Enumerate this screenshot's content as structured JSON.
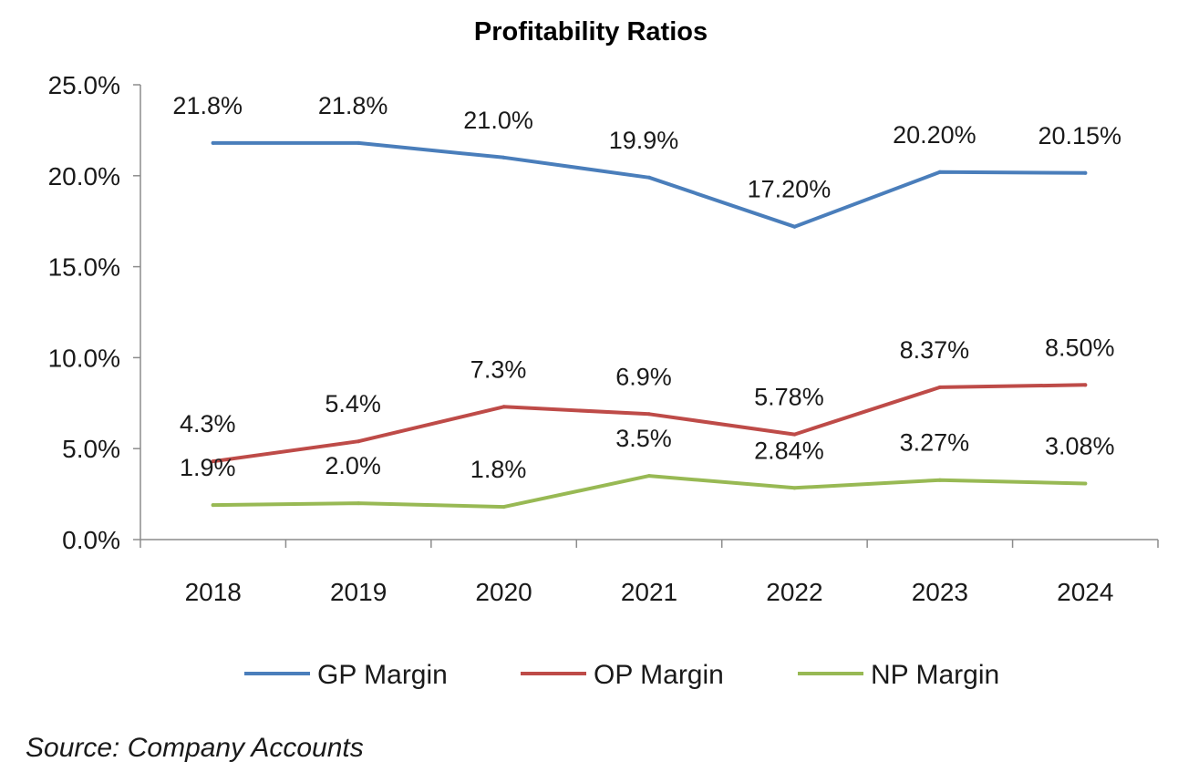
{
  "chart_data": {
    "type": "line",
    "title": "Profitability Ratios",
    "xlabel": "",
    "ylabel": "",
    "categories": [
      "2018",
      "2019",
      "2020",
      "2021",
      "2022",
      "2023",
      "2024"
    ],
    "ylim": [
      0,
      25
    ],
    "yticks": [
      0,
      5,
      10,
      15,
      20,
      25
    ],
    "ytick_labels": [
      "0.0%",
      "5.0%",
      "10.0%",
      "15.0%",
      "20.0%",
      "25.0%"
    ],
    "grid": false,
    "legend_position": "bottom",
    "series": [
      {
        "name": "GP Margin",
        "color": "#4a7ebb",
        "values": [
          21.8,
          21.8,
          21.0,
          19.9,
          17.2,
          20.2,
          20.15
        ],
        "labels": [
          "21.8%",
          "21.8%",
          "21.0%",
          "19.9%",
          "17.20%",
          "20.20%",
          "20.15%"
        ]
      },
      {
        "name": "OP Margin",
        "color": "#be4b48",
        "values": [
          4.3,
          5.4,
          7.3,
          6.9,
          5.78,
          8.37,
          8.5
        ],
        "labels": [
          "4.3%",
          "5.4%",
          "7.3%",
          "6.9%",
          "5.78%",
          "8.37%",
          "8.50%"
        ]
      },
      {
        "name": "NP Margin",
        "color": "#98b954",
        "values": [
          1.9,
          2.0,
          1.8,
          3.5,
          2.84,
          3.27,
          3.08
        ],
        "labels": [
          "1.9%",
          "2.0%",
          "1.8%",
          "3.5%",
          "2.84%",
          "3.27%",
          "3.08%"
        ]
      }
    ]
  },
  "source": "Source: Company Accounts"
}
